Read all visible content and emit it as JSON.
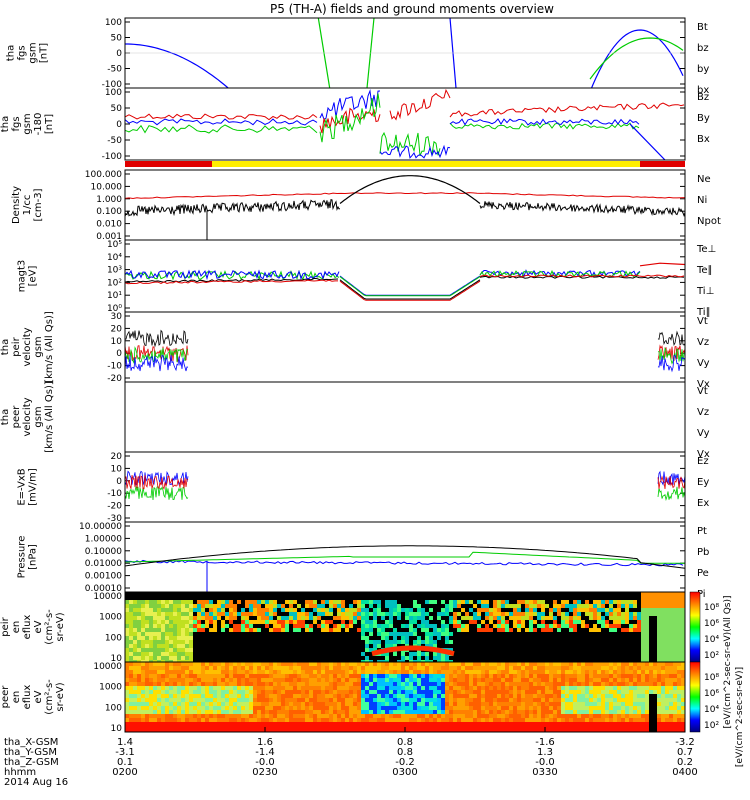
{
  "title": "P5 (TH-A) fields and ground moments overview",
  "colors": {
    "black": "#000000",
    "red": "#e00000",
    "green": "#00cc00",
    "blue": "#0000ff",
    "yellow": "#ffee00"
  },
  "chart_data": [
    {
      "id": "fgs",
      "type": "line",
      "ylabel": [
        "tha",
        "fgs",
        "gsm",
        "[nT]"
      ],
      "ylim": [
        -100,
        100
      ],
      "yticks": [
        "100",
        "50",
        "0",
        "-50",
        "-100"
      ],
      "legend": [
        "Bt",
        "bz",
        "by",
        "bx"
      ],
      "legend_colors": [
        "black",
        "red",
        "green",
        "blue"
      ]
    },
    {
      "id": "fgs_hires",
      "type": "line",
      "ylabel": [
        "tha",
        "fgs",
        "gsm",
        "-180",
        "[nT]"
      ],
      "ylim": [
        -120,
        100
      ],
      "yticks": [
        "100",
        "50",
        "0",
        "-50",
        "-100"
      ],
      "legend": [
        "Bz",
        "By",
        "Bx"
      ],
      "legend_colors": [
        "red",
        "green",
        "blue"
      ]
    },
    {
      "id": "density",
      "type": "line",
      "ylabel": [
        "Density",
        "1/cc",
        "[cm-3]"
      ],
      "scale": "log",
      "yticks": [
        "100.000",
        "10.000",
        "1.000",
        "0.100",
        "0.010",
        "0.001"
      ],
      "legend": [
        "Ne",
        "Ni",
        "Npot"
      ],
      "legend_colors": [
        "red",
        "black",
        "blue"
      ]
    },
    {
      "id": "temperature",
      "type": "line",
      "ylabel": [
        "magt3",
        "[eV]"
      ],
      "scale": "log",
      "yticks": [
        "10⁵",
        "10⁴",
        "10³",
        "10²",
        "10¹",
        "10⁰"
      ],
      "legend": [
        "Te⊥",
        "Te∥",
        "Ti⊥",
        "Ti∥"
      ],
      "legend_colors": [
        "red",
        "black",
        "blue",
        "green"
      ]
    },
    {
      "id": "peir_velocity",
      "type": "line",
      "ylabel": [
        "tha",
        "peir",
        "velocity",
        "gsm",
        "[km/s (All Qs)]"
      ],
      "ylim": [
        -20,
        30
      ],
      "yticks": [
        "30",
        "20",
        "10",
        "0",
        "-10",
        "-20"
      ],
      "legend": [
        "Vt",
        "Vz",
        "Vy",
        "Vx"
      ],
      "legend_colors": [
        "black",
        "red",
        "green",
        "blue"
      ]
    },
    {
      "id": "peer_velocity",
      "type": "line",
      "ylabel": [
        "tha",
        "peer",
        "velocity",
        "gsm",
        "[km/s (All Qs)]"
      ],
      "legend": [
        "Vt",
        "Vz",
        "Vy",
        "Vx"
      ],
      "legend_colors": [
        "black",
        "red",
        "green",
        "blue"
      ]
    },
    {
      "id": "efield",
      "type": "line",
      "ylabel": [
        "E=-VxB",
        "[mV/m]"
      ],
      "ylim": [
        -30,
        20
      ],
      "yticks": [
        "20",
        "10",
        "0",
        "-10",
        "-20",
        "-30"
      ],
      "legend": [
        "Ez",
        "Ey",
        "Ex"
      ],
      "legend_colors": [
        "red",
        "green",
        "blue"
      ]
    },
    {
      "id": "pressure",
      "type": "line",
      "ylabel": [
        "Pressure",
        "[nPa]"
      ],
      "scale": "log",
      "yticks": [
        "10.00000",
        "1.00000",
        "0.10000",
        "0.01000",
        "0.00100",
        "0.00010"
      ],
      "legend": [
        "Pt",
        "Pb",
        "Pe",
        "Pi"
      ],
      "legend_colors": [
        "black",
        "red",
        "green",
        "blue"
      ]
    },
    {
      "id": "peir_spec",
      "type": "heatmap",
      "ylabel": [
        "tha",
        "peir",
        "en",
        "eflux",
        "eV",
        "(cm²-s-",
        "sr-eV)"
      ],
      "scale": "log",
      "yticks": [
        "10000",
        "1000",
        "100",
        "10"
      ],
      "colorbar": [
        "10⁸",
        "10⁶",
        "10⁴",
        "10²"
      ]
    },
    {
      "id": "peer_spec",
      "type": "heatmap",
      "ylabel": [
        "tha",
        "peer",
        "en",
        "eflux",
        "eV",
        "(cm²-s-",
        "sr-eV)"
      ],
      "scale": "log",
      "yticks": [
        "10000",
        "1000",
        "100",
        "10"
      ],
      "colorbar": [
        "10⁸",
        "10⁶",
        "10⁴",
        "10²"
      ],
      "colorbar_label": "[eV/(cm^2-sec-sr-eV)]",
      "colorbar_label_alt": "[eV/(cm^2-sec-sr-eV)(All Qs)]"
    }
  ],
  "x_axis": {
    "rows": [
      {
        "label": "tha_X-GSM",
        "values": [
          "1.4",
          "1.6",
          "0.8",
          "-1.6",
          "-3.2"
        ]
      },
      {
        "label": "tha_Y-GSM",
        "values": [
          "-3.1",
          "-1.4",
          "0.8",
          "1.3",
          "0.7"
        ]
      },
      {
        "label": "tha_Z-GSM",
        "values": [
          "0.1",
          "-0.0",
          "-0.2",
          "-0.0",
          "0.2"
        ]
      },
      {
        "label": "hhmm",
        "values": [
          "0200",
          "0230",
          "0300",
          "0330",
          "0400"
        ]
      }
    ],
    "date": "2014 Aug 16"
  }
}
